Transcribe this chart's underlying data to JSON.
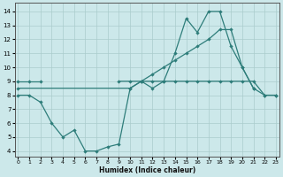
{
  "xlabel": "Humidex (Indice chaleur)",
  "bg_color": "#cce8ea",
  "grid_color": "#aacccc",
  "line_color": "#2e7d7a",
  "x_ticks": [
    0,
    1,
    2,
    3,
    4,
    5,
    6,
    7,
    8,
    9,
    10,
    11,
    12,
    13,
    14,
    15,
    16,
    17,
    18,
    19,
    20,
    21,
    22,
    23
  ],
  "y_ticks": [
    4,
    5,
    6,
    7,
    8,
    9,
    10,
    11,
    12,
    13,
    14
  ],
  "xlim": [
    -0.3,
    23.3
  ],
  "ylim": [
    3.6,
    14.6
  ],
  "series": [
    {
      "segments": [
        {
          "x": [
            0,
            1,
            2
          ],
          "y": [
            9,
            9,
            9
          ]
        },
        {
          "x": [
            9,
            10,
            11,
            12,
            13,
            14,
            15,
            16,
            17,
            18,
            19,
            20,
            21,
            22,
            23
          ],
          "y": [
            9,
            9,
            9,
            9,
            9,
            9,
            9,
            9,
            9,
            9,
            9,
            9,
            9,
            8,
            8
          ]
        }
      ]
    },
    {
      "segments": [
        {
          "x": [
            0,
            1,
            2,
            3,
            4,
            5,
            6,
            7,
            8,
            9,
            10,
            11,
            12,
            13,
            14,
            15,
            16,
            17,
            18,
            19,
            20,
            21
          ],
          "y": [
            8,
            8,
            7.5,
            6,
            5,
            5.5,
            4,
            4,
            4.3,
            4.5,
            8.5,
            9,
            8.5,
            9,
            11,
            13.5,
            12.5,
            14,
            14,
            11.5,
            10,
            8.5
          ]
        }
      ]
    },
    {
      "segments": [
        {
          "x": [
            0,
            10,
            11,
            12,
            13,
            14,
            15,
            16,
            17,
            18,
            19,
            20,
            21,
            22,
            23
          ],
          "y": [
            8.5,
            8.5,
            9,
            9.5,
            10,
            10.5,
            11,
            11.5,
            12,
            12.7,
            12.7,
            10,
            8.5,
            8,
            8
          ]
        }
      ]
    }
  ]
}
